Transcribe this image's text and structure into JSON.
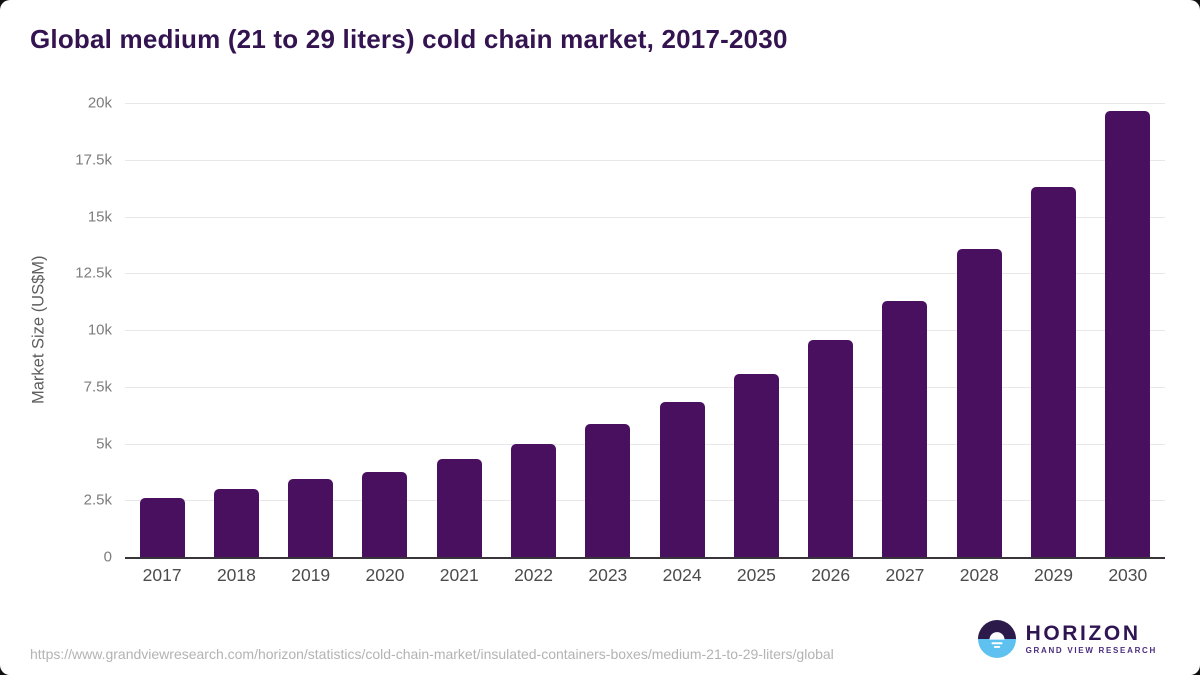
{
  "title": "Global medium (21 to 29 liters) cold chain market, 2017-2030",
  "chart_data": {
    "type": "bar",
    "title": "Global medium (21 to 29 liters) cold chain market, 2017-2030",
    "categories": [
      "2017",
      "2018",
      "2019",
      "2020",
      "2021",
      "2022",
      "2023",
      "2024",
      "2025",
      "2026",
      "2027",
      "2028",
      "2029",
      "2030"
    ],
    "values": [
      2600,
      3000,
      3450,
      3750,
      4300,
      5000,
      5850,
      6850,
      8050,
      9550,
      11300,
      13550,
      16300,
      19650
    ],
    "xlabel": "",
    "ylabel": "Market Size (US$M)",
    "ylim": [
      0,
      20000
    ],
    "y_ticks_top_to_bottom": [
      "20k",
      "17.5k",
      "15k",
      "12.5k",
      "10k",
      "7.5k",
      "5k",
      "2.5k",
      "0"
    ],
    "grid": true,
    "legend": "none",
    "bar_color": "#4a1060"
  },
  "footer": {
    "source_url": "https://www.grandviewresearch.com/horizon/statistics/cold-chain-market/insulated-containers-boxes/medium-21-to-29-liters/global",
    "logo_name": "HORIZON",
    "logo_subtitle": "GRAND VIEW RESEARCH"
  },
  "colors": {
    "title_text": "#331450",
    "bar": "#4a1060",
    "axis_line": "#39343c",
    "gridline": "#e9e7ea",
    "y_tick_text": "#7d7d7d",
    "x_tick_text": "#4c4c4c",
    "url_text": "#b3b3b3",
    "logo_dark_purple": "#2b1a4a",
    "logo_light_blue": "#5ec1ef"
  }
}
